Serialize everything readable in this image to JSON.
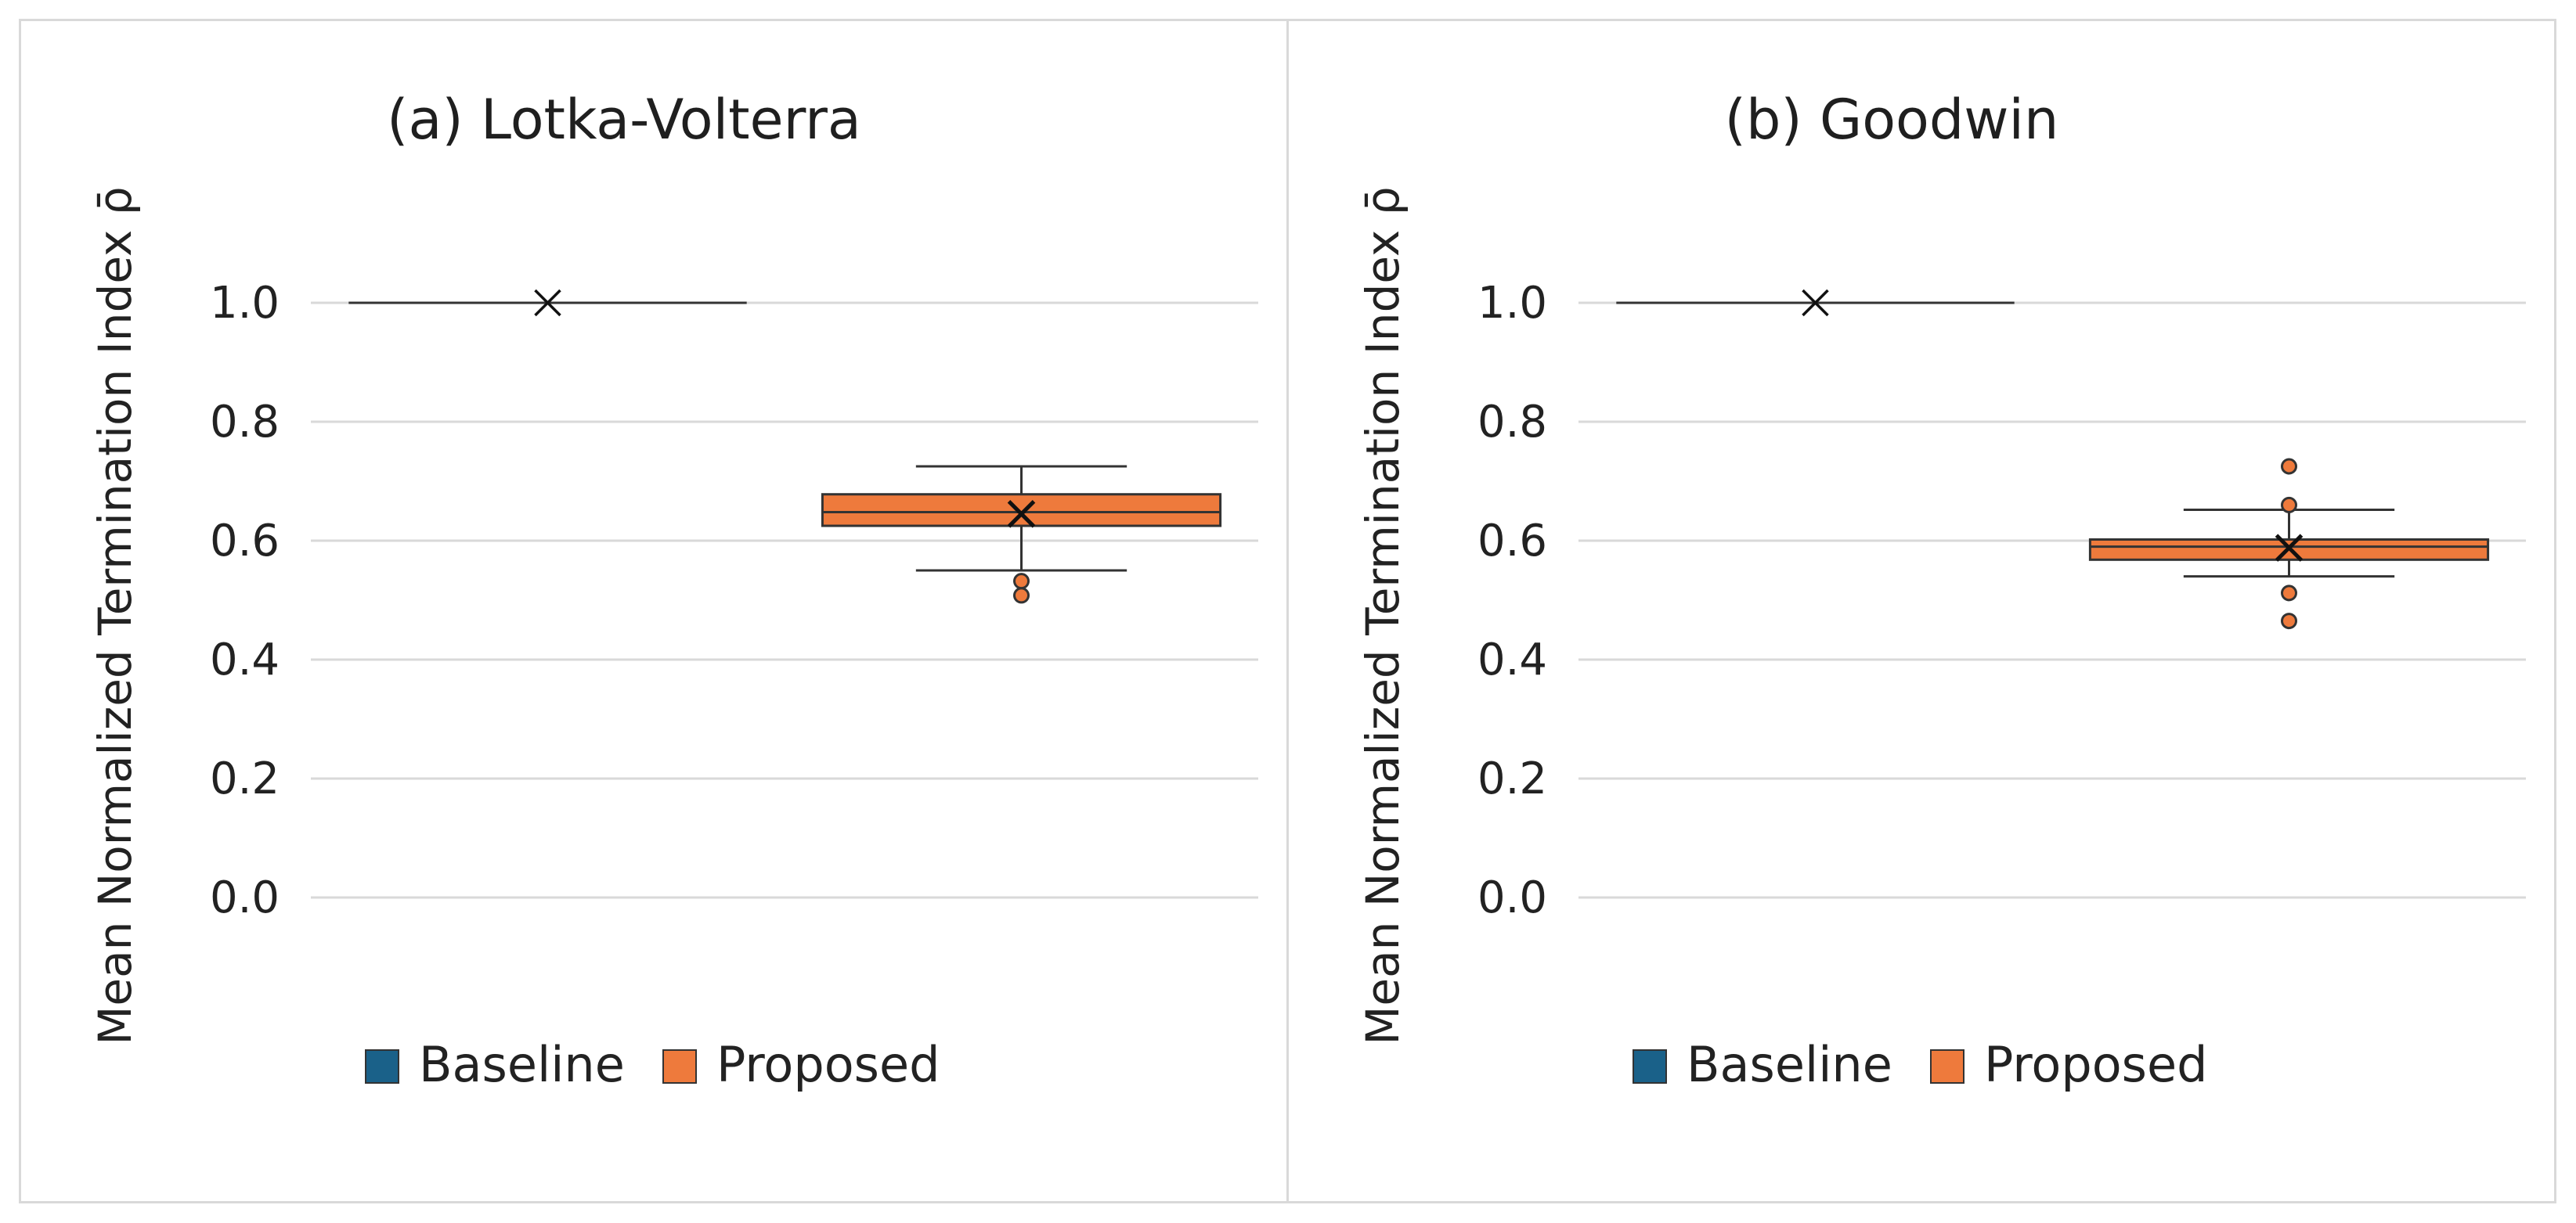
{
  "colors": {
    "baseline": "#1a6189",
    "proposed": "#ee7a3c",
    "edge": "#333333",
    "grid": "#d9d9d9"
  },
  "chart_data": [
    {
      "type": "box",
      "title": "(a) Lotka-Volterra",
      "ylabel": "Mean Normalized Termination Index ρ̄",
      "ylim": [
        0,
        1.0
      ],
      "yticks": [
        "0.0",
        "0.2",
        "0.4",
        "0.6",
        "0.8",
        "1.0"
      ],
      "legend": [
        "Baseline",
        "Proposed"
      ],
      "legend_position": "bottom",
      "series": [
        {
          "name": "Baseline",
          "min": 1.0,
          "q1": 1.0,
          "median": 1.0,
          "q3": 1.0,
          "max": 1.0,
          "mean": 1.0,
          "outliers": []
        },
        {
          "name": "Proposed",
          "min": 0.55,
          "q1": 0.625,
          "median": 0.648,
          "q3": 0.678,
          "max": 0.725,
          "mean": 0.645,
          "outliers": [
            0.532,
            0.508
          ]
        }
      ]
    },
    {
      "type": "box",
      "title": "(b) Goodwin",
      "ylabel": "Mean Normalized Termination Index ρ̄",
      "ylim": [
        0,
        1.0
      ],
      "yticks": [
        "0.0",
        "0.2",
        "0.4",
        "0.6",
        "0.8",
        "1.0"
      ],
      "legend": [
        "Baseline",
        "Proposed"
      ],
      "legend_position": "bottom",
      "series": [
        {
          "name": "Baseline",
          "min": 1.0,
          "q1": 1.0,
          "median": 1.0,
          "q3": 1.0,
          "max": 1.0,
          "mean": 1.0,
          "outliers": []
        },
        {
          "name": "Proposed",
          "min": 0.54,
          "q1": 0.568,
          "median": 0.59,
          "q3": 0.602,
          "max": 0.652,
          "mean": 0.588,
          "outliers": [
            0.725,
            0.66,
            0.512,
            0.465
          ]
        }
      ]
    }
  ]
}
